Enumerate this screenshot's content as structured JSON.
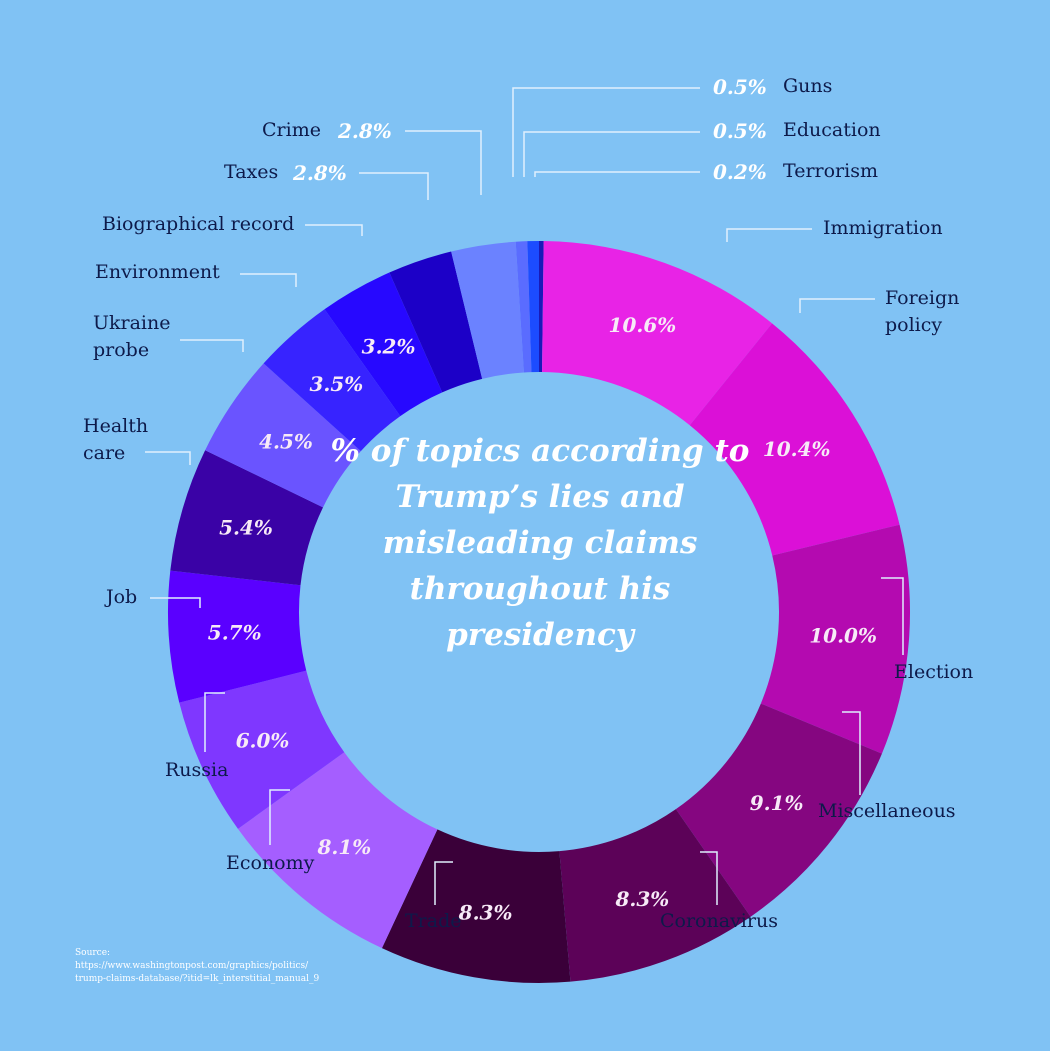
{
  "chart_data": {
    "type": "pie",
    "title": "% of topics according to Trump’s lies and misleading claims throughout his presidency",
    "slices": [
      {
        "label": "Terrorism",
        "value": 0.2,
        "display": "0.2%",
        "color": "#1a1ab8"
      },
      {
        "label": "Immigration",
        "value": 10.6,
        "display": "10.6%",
        "color": "#e823e6"
      },
      {
        "label": "Foreign policy",
        "value": 10.4,
        "display": "10.4%",
        "color": "#db10d7"
      },
      {
        "label": "Election",
        "value": 10.0,
        "display": "10.0%",
        "color": "#b40ab0"
      },
      {
        "label": "Miscellaneous",
        "value": 9.1,
        "display": "9.1%",
        "color": "#850680"
      },
      {
        "label": "Coronavirus",
        "value": 8.3,
        "display": "8.3%",
        "color": "#5c0258"
      },
      {
        "label": "Trade",
        "value": 8.3,
        "display": "8.3%",
        "color": "#3a0039"
      },
      {
        "label": "Economy",
        "value": 8.1,
        "display": "8.1%",
        "color": "#a55eff"
      },
      {
        "label": "Russia",
        "value": 6.0,
        "display": "6.0%",
        "color": "#7f37ff"
      },
      {
        "label": "Job",
        "value": 5.7,
        "display": "5.7%",
        "color": "#5a00ff"
      },
      {
        "label": "Health care",
        "value": 5.4,
        "display": "5.4%",
        "color": "#3a02a6"
      },
      {
        "label": "Ukraine probe",
        "value": 4.5,
        "display": "4.5%",
        "color": "#6a54ff"
      },
      {
        "label": "Environment",
        "value": 3.5,
        "display": "3.5%",
        "color": "#3723ff"
      },
      {
        "label": "Biographical record",
        "value": 3.2,
        "display": "3.2%",
        "color": "#2708ff"
      },
      {
        "label": "Taxes",
        "value": 2.8,
        "display": "2.8%",
        "color": "#1c00c7"
      },
      {
        "label": "Crime",
        "value": 2.8,
        "display": "2.8%",
        "color": "#6b82ff"
      },
      {
        "label": "Guns",
        "value": 0.5,
        "display": "0.5%",
        "color": "#5a6cff"
      },
      {
        "label": "Education",
        "value": 0.5,
        "display": "0.5%",
        "color": "#1c4cff"
      }
    ]
  },
  "labels": {
    "Guns": "Guns",
    "Education": "Education",
    "Terrorism": "Terrorism",
    "Crime": "Crime",
    "Taxes": "Taxes",
    "Biographical record": "Biographical record",
    "Environment": "Environment",
    "Ukraine probe": [
      "Ukraine",
      "probe"
    ],
    "Health care": [
      "Health",
      "care"
    ],
    "Job": "Job",
    "Russia": "Russia",
    "Economy": "Economy",
    "Trade": "Trade",
    "Coronavirus": "Coronavirus",
    "Miscellaneous": "Miscellaneous",
    "Election": "Election",
    "Foreign policy": [
      "Foreign",
      "policy"
    ],
    "Immigration": "Immigration"
  },
  "source": {
    "heading": "Source:",
    "line1": "https://www.washingtonpost.com/graphics/politics/",
    "line2": "trump-claims-database/?itid=lk_interstitial_manual_9"
  },
  "colors": {
    "background": "#80c2f4",
    "leader": "#dff0fd",
    "label_text": "#0d1a4a"
  }
}
